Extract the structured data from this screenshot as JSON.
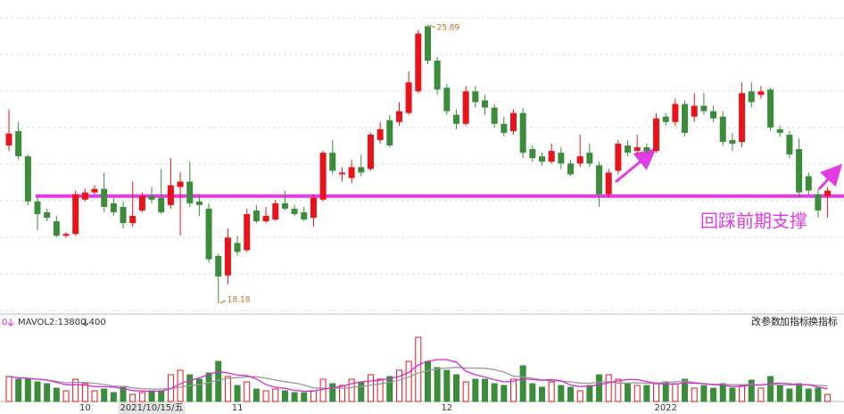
{
  "chart_data": {
    "type": "candlestick",
    "categories": [
      null,
      null,
      null,
      null,
      null,
      null,
      null,
      null,
      "10",
      null,
      null,
      null,
      null,
      null,
      null,
      "2021/10/15/五",
      null,
      null,
      null,
      null,
      null,
      null,
      null,
      null,
      "11",
      null,
      null,
      null,
      null,
      null,
      null,
      null,
      null,
      null,
      null,
      null,
      null,
      null,
      null,
      null,
      null,
      null,
      null,
      null,
      null,
      null,
      "12",
      null,
      null,
      null,
      null,
      null,
      null,
      null,
      null,
      null,
      null,
      null,
      null,
      null,
      null,
      null,
      null,
      null,
      null,
      null,
      null,
      null,
      null,
      "2022",
      null,
      null,
      null,
      null,
      null,
      null,
      null,
      null,
      null,
      null,
      null,
      null,
      null,
      null,
      null,
      null,
      null
    ],
    "open": [
      22.55,
      22.95,
      22.25,
      21.0,
      20.7,
      20.45,
      20.05,
      20.1,
      21.05,
      21.25,
      21.35,
      20.95,
      20.85,
      20.4,
      20.75,
      21.15,
      21.1,
      20.9,
      21.4,
      21.55,
      21.0,
      20.8,
      19.49,
      18.95,
      19.85,
      19.65,
      20.75,
      20.45,
      20.5,
      20.95,
      20.8,
      20.7,
      20.55,
      21.05,
      22.35,
      21.75,
      21.65,
      21.95,
      21.9,
      22.7,
      23.25,
      23.2,
      23.45,
      24.05,
      25.85,
      24.9,
      24.15,
      23.4,
      23.15,
      24.05,
      23.8,
      23.6,
      23.15,
      22.95,
      23.45,
      22.45,
      22.25,
      22.1,
      22.35,
      22.05,
      22.05,
      22.35,
      22.0,
      21.2,
      21.85,
      22.55,
      22.4,
      22.5,
      22.4,
      23.35,
      23.2,
      23.7,
      23.35,
      23.65,
      23.5,
      23.35,
      22.7,
      22.65,
      24.05,
      23.95,
      24.1,
      23.0,
      22.85,
      22.45,
      21.7,
      21.2,
      21.15
    ],
    "high": [
      23.55,
      23.2,
      22.3,
      21.1,
      20.8,
      20.6,
      20.15,
      21.3,
      21.35,
      21.45,
      21.8,
      21.1,
      21.0,
      21.55,
      21.25,
      21.4,
      21.9,
      22.2,
      21.8,
      22.1,
      21.2,
      20.95,
      19.55,
      20.25,
      20.05,
      20.8,
      20.9,
      20.85,
      21.05,
      21.3,
      20.9,
      20.85,
      21.2,
      22.4,
      22.7,
      21.95,
      22.15,
      22.3,
      22.9,
      23.2,
      23.4,
      23.75,
      24.6,
      25.75,
      25.89,
      25.0,
      24.25,
      23.55,
      24.2,
      24.2,
      23.95,
      23.7,
      23.35,
      23.55,
      23.6,
      22.55,
      22.35,
      22.6,
      22.5,
      22.15,
      22.85,
      22.6,
      22.1,
      21.9,
      22.7,
      22.7,
      22.85,
      22.6,
      23.45,
      23.45,
      23.85,
      23.8,
      24.0,
      24.0,
      23.65,
      23.5,
      22.9,
      24.3,
      24.3,
      24.2,
      24.15,
      23.1,
      22.95,
      22.75,
      21.8,
      21.35,
      21.4
    ],
    "low": [
      22.4,
      22.15,
      20.9,
      20.2,
      20.45,
      20.0,
      20.0,
      20.05,
      21.0,
      21.2,
      20.7,
      20.6,
      20.25,
      20.3,
      20.7,
      20.95,
      20.65,
      20.8,
      20.05,
      20.85,
      20.6,
      19.3,
      18.18,
      18.7,
      19.5,
      19.6,
      20.4,
      20.4,
      20.45,
      20.75,
      20.6,
      20.45,
      20.3,
      21.0,
      21.75,
      21.55,
      21.5,
      21.7,
      21.85,
      22.6,
      22.5,
      23.1,
      23.4,
      24.0,
      24.8,
      23.95,
      23.4,
      23.0,
      23.1,
      23.6,
      23.4,
      23.05,
      22.8,
      22.85,
      22.2,
      22.1,
      22.0,
      22.05,
      21.9,
      21.7,
      21.95,
      21.95,
      20.85,
      21.1,
      21.75,
      22.25,
      22.3,
      22.3,
      22.35,
      23.1,
      23.1,
      22.8,
      23.2,
      23.4,
      23.2,
      22.55,
      22.4,
      22.5,
      23.6,
      23.85,
      22.95,
      22.8,
      22.2,
      21.1,
      21.2,
      20.55,
      20.55
    ],
    "close": [
      22.88,
      22.25,
      21.0,
      20.65,
      20.55,
      20.05,
      20.1,
      21.2,
      21.25,
      21.35,
      20.85,
      20.7,
      20.4,
      20.6,
      21.15,
      21.05,
      20.7,
      21.45,
      21.55,
      20.95,
      20.9,
      19.4,
      18.92,
      20.0,
      19.6,
      20.65,
      20.45,
      20.6,
      20.95,
      20.8,
      20.65,
      20.5,
      21.1,
      22.35,
      21.85,
      21.8,
      21.95,
      21.8,
      22.85,
      23.0,
      22.55,
      23.5,
      24.3,
      25.65,
      24.9,
      24.1,
      23.5,
      23.15,
      24.05,
      23.75,
      23.6,
      23.15,
      22.9,
      23.45,
      22.35,
      22.2,
      22.1,
      22.4,
      22.05,
      21.75,
      22.25,
      22.05,
      21.2,
      21.8,
      22.6,
      22.35,
      22.5,
      22.4,
      23.3,
      23.2,
      23.7,
      22.9,
      23.65,
      23.5,
      23.3,
      22.65,
      22.6,
      24.0,
      23.75,
      24.05,
      23.05,
      22.9,
      22.3,
      21.25,
      21.3,
      20.75,
      21.3
    ],
    "volume": [
      22400,
      20000,
      20000,
      17600,
      16000,
      12000,
      9600,
      20000,
      16000,
      9600,
      11200,
      8000,
      13600,
      6400,
      8000,
      9600,
      9600,
      24000,
      28000,
      24000,
      20000,
      25600,
      36000,
      22400,
      14400,
      17600,
      11200,
      9600,
      11200,
      9600,
      8000,
      8000,
      9600,
      20000,
      16000,
      14400,
      20000,
      17600,
      24000,
      20000,
      22400,
      28000,
      36000,
      57600,
      36000,
      30400,
      28000,
      24000,
      17600,
      20000,
      20000,
      16000,
      14400,
      20000,
      32000,
      16000,
      12800,
      17600,
      14400,
      12800,
      9600,
      14400,
      24000,
      24000,
      20000,
      16000,
      14400,
      14400,
      16000,
      17600,
      16000,
      20000,
      12000,
      14400,
      12000,
      16000,
      12000,
      14400,
      19200,
      12000,
      22400,
      14400,
      11200,
      16000,
      11200,
      12000,
      6400
    ],
    "ylim": [
      17.93,
      26.58
    ],
    "volume_ylim": [
      0,
      64000
    ],
    "up_color": "#e8141b",
    "down_color": "#3b8c3b",
    "ma_color": "#d62ad6",
    "support_level": 21.15,
    "support_color": "#e23ce2",
    "annotation": "回踩前期支撑",
    "volume_header": {
      "value": "0",
      "indicator": "MAVOL2:13800.400"
    },
    "buttons": [
      "改参数",
      "加指标",
      "换指标"
    ]
  }
}
